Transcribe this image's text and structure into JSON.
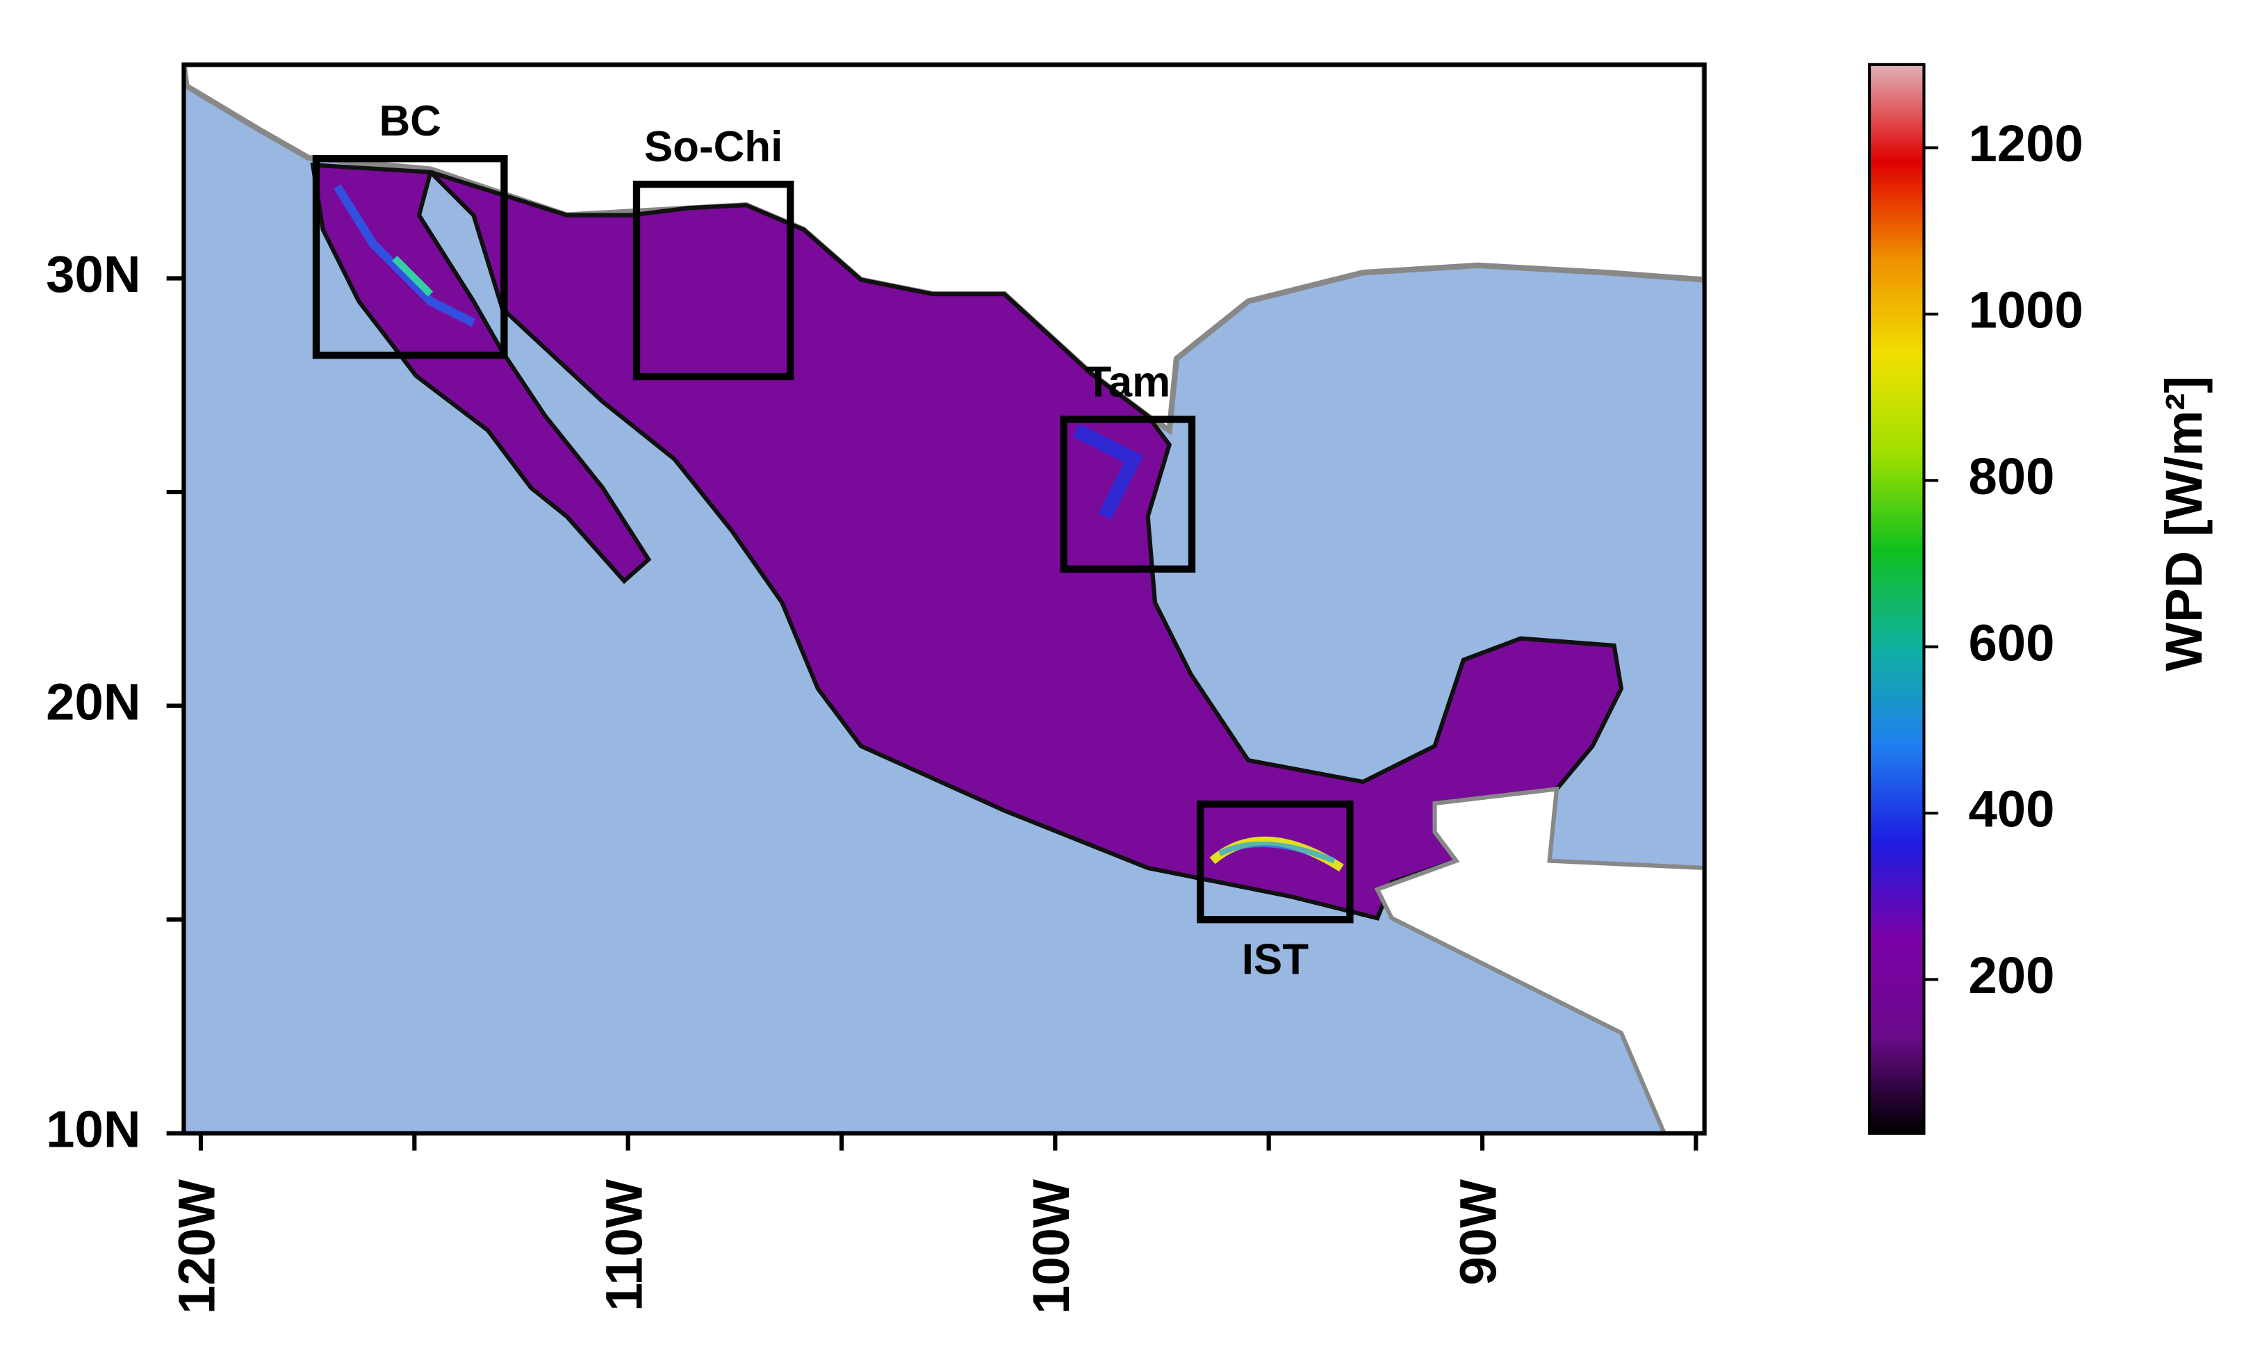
{
  "chart_data": {
    "type": "map",
    "xlim": [
      -120.4,
      -84.8
    ],
    "ylim": [
      10,
      35
    ],
    "xticks": [
      {
        "value": -120,
        "label": "120W"
      },
      {
        "value": -110,
        "label": "110W"
      },
      {
        "value": -100,
        "label": "100W"
      },
      {
        "value": -90,
        "label": "90W"
      }
    ],
    "xminor": [
      -115,
      -105,
      -95,
      -85
    ],
    "yticks": [
      {
        "value": 10,
        "label": "10N"
      },
      {
        "value": 20,
        "label": "20N"
      },
      {
        "value": 30,
        "label": "30N"
      }
    ],
    "yminor": [
      15,
      25
    ],
    "regions": [
      {
        "name": "BC",
        "lon": [
          -117.3,
          -112.9
        ],
        "lat": [
          28.2,
          32.8
        ]
      },
      {
        "name": "So-Chi",
        "lon": [
          -109.8,
          -106.2
        ],
        "lat": [
          27.7,
          32.2
        ]
      },
      {
        "name": "Tam",
        "lon": [
          -99.8,
          -96.8
        ],
        "lat": [
          23.2,
          26.7
        ]
      },
      {
        "name": "IST",
        "lon": [
          -96.6,
          -93.1
        ],
        "lat": [
          15.0,
          17.7
        ]
      }
    ],
    "colorbar": {
      "label": "WPD [W/m²]",
      "lim": [
        15,
        1300
      ],
      "ticks": [
        200,
        400,
        600,
        800,
        1000,
        1200
      ],
      "colormap": [
        "#000000",
        "#6a0a8a",
        "#7b00a8",
        "#1d1de0",
        "#2080f0",
        "#10b0a0",
        "#10c020",
        "#a0e000",
        "#f0e000",
        "#f09000",
        "#e00000",
        "#e0b0b8"
      ]
    },
    "ocean_color": "#98b8e2",
    "land_color": "#7a0a9a"
  }
}
